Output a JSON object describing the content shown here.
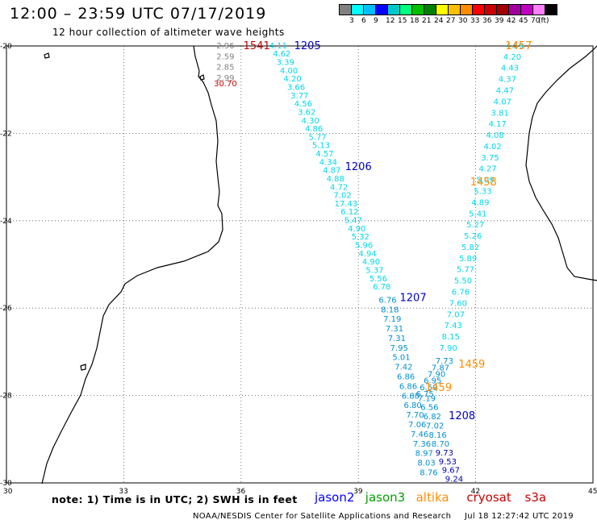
{
  "header": {
    "title": "12:00 – 23:59 UTC 07/17/2019",
    "subtitle": "12 hour collection of altimeter wave heights"
  },
  "scale": {
    "colors": [
      "#808080",
      "#00ffff",
      "#00bfff",
      "#0000ff",
      "#00c8c8",
      "#00ff7f",
      "#00c000",
      "#008000",
      "#ffff00",
      "#ffbf00",
      "#ff8c00",
      "#ff0000",
      "#c80000",
      "#a00000",
      "#a000a0",
      "#c000c0",
      "#ff80ff",
      "#000000"
    ],
    "labels": [
      "3",
      "6",
      "9",
      "12",
      "15",
      "18",
      "21",
      "24",
      "27",
      "30",
      "33",
      "36",
      "39",
      "42",
      "45",
      "70",
      "(ft)"
    ]
  },
  "axes": {
    "lon_labels": [
      "30",
      "33",
      "36",
      "39",
      "42",
      "45"
    ],
    "lat_labels": [
      "-20",
      "-22",
      "-24",
      "-26",
      "-28",
      "-30"
    ]
  },
  "footer": {
    "note": "note: 1) Time is in UTC; 2) SWH is in feet",
    "satellites": [
      {
        "name": "jason2",
        "color": "#0000ff"
      },
      {
        "name": "jason3",
        "color": "#00a000"
      },
      {
        "name": "altika",
        "color": "#ff8c00"
      },
      {
        "name": "cryosat",
        "color": "#c80000"
      },
      {
        "name": "s3a",
        "color": "#c80000"
      }
    ],
    "credit": "NOAA/NESDIS Center for Satellite Applications and Research",
    "timestamp": "Jul 18 12:27:42 UTC 2019"
  },
  "pass_labels": [
    {
      "text": "1541",
      "lon": 36.4,
      "lat": -19.98,
      "color": "#c80000"
    },
    {
      "text": "1205",
      "lon": 37.7,
      "lat": -19.98,
      "color": "#0000c0"
    },
    {
      "text": "1206",
      "lon": 39.0,
      "lat": -22.75,
      "color": "#0000c0"
    },
    {
      "text": "1207",
      "lon": 40.4,
      "lat": -25.75,
      "color": "#0000c0"
    },
    {
      "text": "1208",
      "lon": 41.65,
      "lat": -28.45,
      "color": "#0000c0"
    },
    {
      "text": "1457",
      "lon": 43.1,
      "lat": -19.98,
      "color": "#ff8c00"
    },
    {
      "text": "1458",
      "lon": 42.2,
      "lat": -23.1,
      "color": "#ff8c00"
    },
    {
      "text": "1459",
      "lon": 41.9,
      "lat": -27.27,
      "color": "#ff8c00"
    },
    {
      "text": "1459",
      "lon": 41.05,
      "lat": -27.8,
      "color": "#ff8c00"
    }
  ],
  "swh_groups": [
    {
      "color": "#808080",
      "lon": 35.6,
      "lat0": -19.98,
      "lat1": -20.72,
      "values": [
        "2.96",
        "2.59",
        "2.85",
        "2.99"
      ]
    },
    {
      "color": "#c80000",
      "lon": 35.6,
      "lat0": -20.85,
      "lat1": -20.85,
      "values": [
        "30.70"
      ]
    },
    {
      "color": "#00d8e8",
      "lon0": 36.95,
      "lat0": -19.98,
      "lon1": 39.6,
      "lat1": -25.5,
      "values": [
        "4.11",
        "4.62",
        "3.39",
        "4.00",
        "4.20",
        "3.66",
        "3.77",
        "4.56",
        "3.62",
        "4.30",
        "4.86",
        "5.77",
        "5.13",
        "4.57",
        "4.34",
        "4.87",
        "4.88",
        "4.72",
        "7.02",
        "17.43",
        "6.12",
        "5.47",
        "4.90",
        "5.32",
        "5.96",
        "4.94",
        "4.90",
        "5.37",
        "5.56",
        "6.78"
      ]
    },
    {
      "color": "#0090d0",
      "lon0": 39.75,
      "lat0": -25.8,
      "lon1": 40.8,
      "lat1": -29.75,
      "values": [
        "6.76",
        "8.18",
        "7.19",
        "7.31",
        "7.31",
        "7.95",
        "5.01",
        "7.42",
        "6.86",
        "6.86",
        "6.80",
        "6.80",
        "7.70",
        "7.06",
        "7.46",
        "7.36",
        "8.97",
        "8.03",
        "8.76"
      ]
    },
    {
      "color": "#00d8e8",
      "lon0": 43.0,
      "lat0": -19.98,
      "lon1": 41.3,
      "lat1": -26.9,
      "values": [
        "4.59",
        "4.20",
        "4.43",
        "4.37",
        "4.47",
        "4.07",
        "3.81",
        "4.17",
        "4.08",
        "4.02",
        "3.75",
        "4.27",
        "5.09",
        "5.33",
        "4.89",
        "5.41",
        "5.27",
        "5.26",
        "5.82",
        "5.89",
        "5.77",
        "5.50",
        "6.76",
        "7.60",
        "7.07",
        "7.43",
        "8.15",
        "7.90"
      ]
    },
    {
      "color": "#0090d0",
      "lon0": 41.2,
      "lat0": -27.2,
      "lon1": 40.7,
      "lat1": -27.95,
      "values": [
        "7.73",
        "7.87",
        "7.90",
        "6.95",
        "6.59",
        "6.75"
      ]
    },
    {
      "color": "#0090d0",
      "lon0": 40.75,
      "lat0": -28.05,
      "lon1": 41.1,
      "lat1": -29.1,
      "values": [
        "7.19",
        "6.56",
        "6.82",
        "7.02",
        "8.16",
        "8.70"
      ]
    },
    {
      "color": "#0000b0",
      "lon0": 41.2,
      "lat0": -29.3,
      "lon1": 41.45,
      "lat1": -29.9,
      "values": [
        "9.73",
        "9.53",
        "9.67",
        "9.24"
      ]
    }
  ]
}
